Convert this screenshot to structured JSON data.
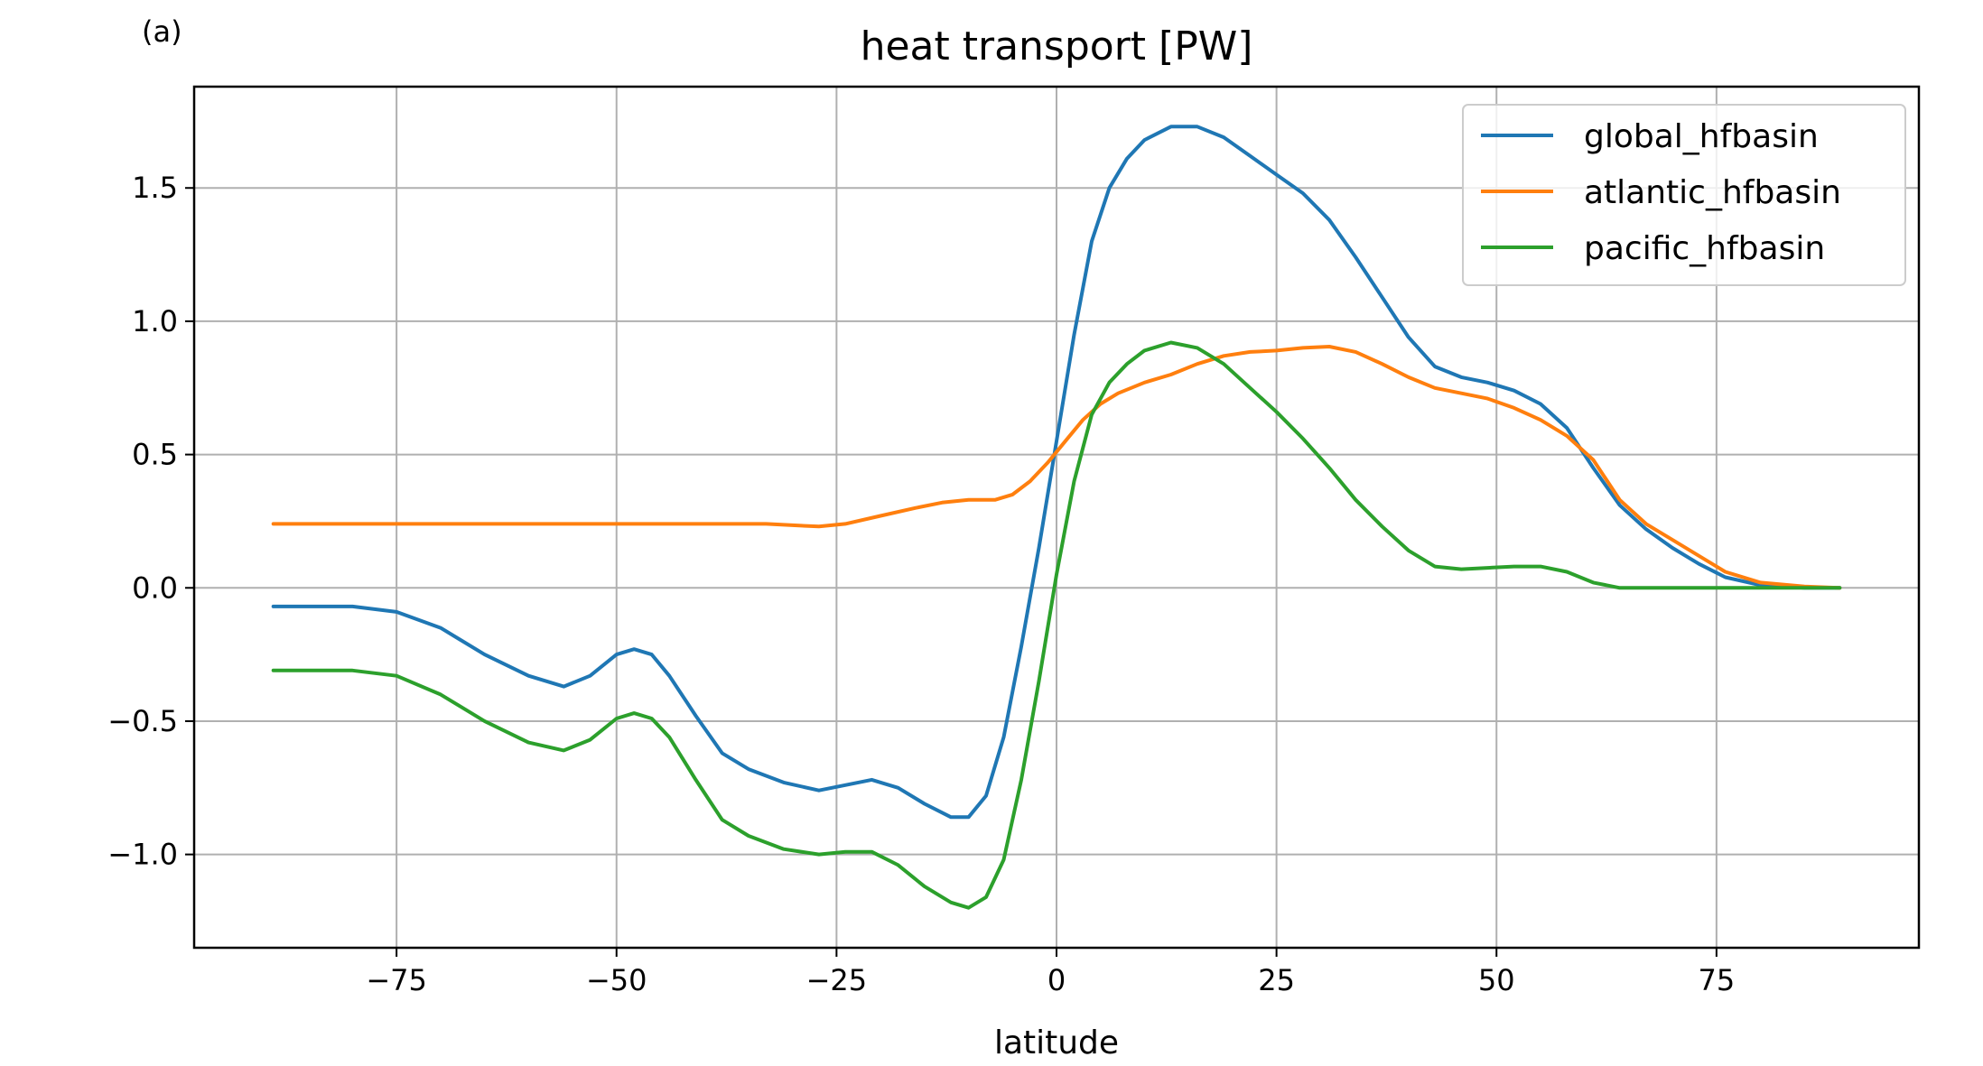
{
  "panel_label": "(a)",
  "chart_data": {
    "type": "line",
    "title": "heat transport [PW]",
    "xlabel": "latitude",
    "ylabel": "",
    "xlim": [
      -98,
      98
    ],
    "ylim": [
      -1.35,
      1.88
    ],
    "xticks": [
      -75,
      -50,
      -25,
      0,
      25,
      50,
      75
    ],
    "xtick_labels": [
      "−75",
      "−50",
      "−25",
      "0",
      "25",
      "50",
      "75"
    ],
    "yticks": [
      -1.0,
      -0.5,
      0.0,
      0.5,
      1.0,
      1.5
    ],
    "ytick_labels": [
      "−1.0",
      "−0.5",
      "0.0",
      "0.5",
      "1.0",
      "1.5"
    ],
    "grid": true,
    "legend_position": "top-right",
    "series": [
      {
        "name": "global_hfbasin",
        "color": "#1f77b4",
        "x": [
          -89,
          -80,
          -75,
          -70,
          -65,
          -60,
          -56,
          -53,
          -50,
          -48,
          -46,
          -44,
          -41,
          -38,
          -35,
          -31,
          -27,
          -24,
          -21,
          -18,
          -15,
          -12,
          -10,
          -8,
          -6,
          -4,
          -2,
          0,
          2,
          4,
          6,
          8,
          10,
          13,
          16,
          19,
          22,
          25,
          28,
          31,
          34,
          37,
          40,
          43,
          46,
          49,
          52,
          55,
          58,
          61,
          64,
          67,
          70,
          73,
          76,
          80,
          85,
          89
        ],
        "y": [
          -0.07,
          -0.07,
          -0.09,
          -0.15,
          -0.25,
          -0.33,
          -0.37,
          -0.33,
          -0.25,
          -0.23,
          -0.25,
          -0.33,
          -0.48,
          -0.62,
          -0.68,
          -0.73,
          -0.76,
          -0.74,
          -0.72,
          -0.75,
          -0.81,
          -0.86,
          -0.86,
          -0.78,
          -0.56,
          -0.22,
          0.15,
          0.55,
          0.95,
          1.3,
          1.5,
          1.61,
          1.68,
          1.73,
          1.73,
          1.69,
          1.62,
          1.55,
          1.48,
          1.38,
          1.24,
          1.09,
          0.94,
          0.83,
          0.79,
          0.77,
          0.74,
          0.69,
          0.6,
          0.45,
          0.31,
          0.22,
          0.15,
          0.09,
          0.04,
          0.01,
          0.0,
          0.0
        ]
      },
      {
        "name": "atlantic_hfbasin",
        "color": "#ff7f0e",
        "x": [
          -89,
          -80,
          -70,
          -60,
          -50,
          -40,
          -33,
          -30,
          -27,
          -24,
          -20,
          -16,
          -13,
          -10,
          -7,
          -5,
          -3,
          -1,
          1,
          3,
          5,
          7,
          10,
          13,
          16,
          19,
          22,
          25,
          28,
          31,
          34,
          37,
          40,
          43,
          46,
          49,
          52,
          55,
          58,
          61,
          64,
          67,
          70,
          73,
          76,
          80,
          85,
          89
        ],
        "y": [
          0.24,
          0.24,
          0.24,
          0.24,
          0.24,
          0.24,
          0.24,
          0.235,
          0.23,
          0.24,
          0.27,
          0.3,
          0.32,
          0.33,
          0.33,
          0.35,
          0.4,
          0.47,
          0.55,
          0.63,
          0.69,
          0.73,
          0.77,
          0.8,
          0.84,
          0.87,
          0.885,
          0.89,
          0.9,
          0.905,
          0.885,
          0.84,
          0.79,
          0.75,
          0.73,
          0.71,
          0.675,
          0.63,
          0.57,
          0.48,
          0.33,
          0.24,
          0.18,
          0.12,
          0.06,
          0.02,
          0.005,
          0.0
        ]
      },
      {
        "name": "pacific_hfbasin",
        "color": "#2ca02c",
        "x": [
          -89,
          -80,
          -75,
          -70,
          -65,
          -60,
          -56,
          -53,
          -50,
          -48,
          -46,
          -44,
          -41,
          -38,
          -35,
          -31,
          -27,
          -24,
          -21,
          -18,
          -15,
          -12,
          -10,
          -8,
          -6,
          -4,
          -2,
          0,
          2,
          4,
          6,
          8,
          10,
          13,
          16,
          19,
          22,
          25,
          28,
          31,
          34,
          37,
          40,
          43,
          46,
          49,
          52,
          55,
          58,
          61,
          64,
          70,
          80,
          89
        ],
        "y": [
          -0.31,
          -0.31,
          -0.33,
          -0.4,
          -0.5,
          -0.58,
          -0.61,
          -0.57,
          -0.49,
          -0.47,
          -0.49,
          -0.56,
          -0.72,
          -0.87,
          -0.93,
          -0.98,
          -1.0,
          -0.99,
          -0.99,
          -1.04,
          -1.12,
          -1.18,
          -1.2,
          -1.16,
          -1.02,
          -0.72,
          -0.35,
          0.05,
          0.4,
          0.65,
          0.77,
          0.84,
          0.89,
          0.92,
          0.9,
          0.84,
          0.75,
          0.66,
          0.56,
          0.45,
          0.33,
          0.23,
          0.14,
          0.08,
          0.07,
          0.075,
          0.08,
          0.08,
          0.06,
          0.02,
          0.0,
          0.0,
          0.0,
          0.0
        ]
      }
    ]
  }
}
